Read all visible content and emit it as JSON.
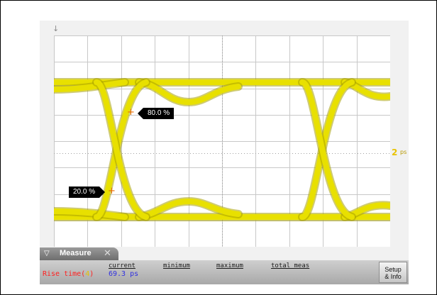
{
  "waveform": {
    "top_marker": "↓",
    "right_marker": "2",
    "right_marker_unit": "ps",
    "trace_color": "#e8e000",
    "trace_edge_color": "#a8a000"
  },
  "reference_levels": {
    "upper_label": "80.0 %",
    "lower_label": "20.0 %",
    "cross_symbol": "+"
  },
  "measure_panel": {
    "tab_label": "Measure",
    "collapse_icon": "triangle-down-icon",
    "close_icon": "close-icon",
    "columns": [
      "current",
      "minimum",
      "maximum",
      "total meas"
    ],
    "measurement": {
      "name": "Rise time(",
      "channel": "4",
      "name_close": ")",
      "current_value": "69.3 ps",
      "name_color": "#ff2020",
      "value_color": "#3030e0"
    },
    "setup_button_line1": "Setup",
    "setup_button_line2": "& Info"
  }
}
